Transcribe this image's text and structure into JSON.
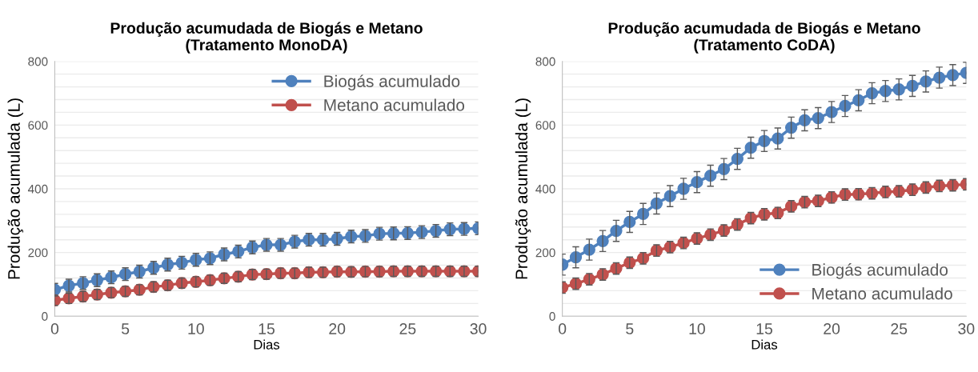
{
  "chart_data": [
    {
      "type": "line",
      "title": "Produção acumudada de Biogás e Metano\n(Tratamento MonoDA)",
      "xlabel": "Dias",
      "ylabel": "Produção acumulada (L)",
      "x": [
        0,
        1,
        2,
        3,
        4,
        5,
        6,
        7,
        8,
        9,
        10,
        11,
        12,
        13,
        14,
        15,
        16,
        17,
        18,
        19,
        20,
        21,
        22,
        23,
        24,
        25,
        26,
        27,
        28,
        29,
        30
      ],
      "series": [
        {
          "name": "Biogás acumulado",
          "color": "#4f81bd",
          "values": [
            83,
            96,
            104,
            113,
            122,
            132,
            140,
            152,
            162,
            168,
            177,
            182,
            194,
            203,
            216,
            224,
            224,
            234,
            240,
            240,
            243,
            250,
            252,
            259,
            260,
            261,
            264,
            268,
            273,
            274,
            276
          ],
          "errors": [
            20,
            20,
            20,
            20,
            20,
            20,
            20,
            20,
            20,
            20,
            20,
            20,
            20,
            20,
            20,
            20,
            20,
            20,
            20,
            20,
            20,
            20,
            20,
            20,
            20,
            20,
            20,
            20,
            20,
            20,
            20
          ]
        },
        {
          "name": "Metano acumulado",
          "color": "#c0504d",
          "values": [
            50,
            56,
            62,
            68,
            74,
            78,
            83,
            92,
            97,
            104,
            108,
            113,
            119,
            124,
            131,
            132,
            135,
            135,
            138,
            138,
            140,
            139,
            140,
            140,
            141,
            141,
            141,
            141,
            141,
            141,
            141
          ],
          "errors": [
            16,
            16,
            16,
            16,
            16,
            16,
            16,
            16,
            16,
            16,
            16,
            16,
            16,
            16,
            16,
            16,
            16,
            16,
            16,
            16,
            16,
            16,
            16,
            16,
            16,
            16,
            16,
            16,
            16,
            16,
            16
          ]
        }
      ],
      "xlim": [
        0,
        30
      ],
      "xticks": [
        0,
        5,
        10,
        15,
        20,
        25,
        30
      ],
      "ylim": [
        0,
        800
      ],
      "yticks": [
        0,
        {
          "value": 40,
          "label": null
        },
        {
          "value": 80,
          "label": null
        },
        {
          "value": 120,
          "label": null
        },
        {
          "value": 160,
          "label": null
        },
        200,
        {
          "value": 240,
          "label": null
        },
        {
          "value": 280,
          "label": null
        },
        {
          "value": 320,
          "label": null
        },
        {
          "value": 360,
          "label": null
        },
        400,
        {
          "value": 440,
          "label": null
        },
        {
          "value": 480,
          "label": null
        },
        {
          "value": 520,
          "label": null
        },
        {
          "value": 560,
          "label": null
        },
        600,
        {
          "value": 640,
          "label": null
        },
        {
          "value": 680,
          "label": null
        },
        {
          "value": 720,
          "label": null
        },
        {
          "value": 760,
          "label": null
        },
        800
      ],
      "grid": "y",
      "legend": "top right",
      "marker": "circle",
      "line_style": "solid"
    },
    {
      "type": "line",
      "title": "Produção acumudada de Biogás e Metano\n(Tratamento CoDA)",
      "xlabel": "Dias",
      "ylabel": "Produção acumulada (L)",
      "x": [
        0,
        1,
        2,
        3,
        4,
        5,
        6,
        7,
        8,
        9,
        10,
        11,
        12,
        13,
        14,
        15,
        16,
        17,
        18,
        19,
        20,
        21,
        22,
        23,
        24,
        25,
        26,
        27,
        28,
        29,
        30
      ],
      "series": [
        {
          "name": "Biogás acumulado",
          "color": "#4f81bd",
          "values": [
            162,
            185,
            209,
            236,
            268,
            296,
            321,
            354,
            377,
            400,
            421,
            441,
            462,
            494,
            529,
            550,
            558,
            592,
            615,
            622,
            641,
            660,
            678,
            700,
            707,
            712,
            723,
            737,
            749,
            757,
            764
          ],
          "errors": [
            33,
            33,
            33,
            33,
            33,
            33,
            33,
            33,
            33,
            33,
            33,
            33,
            33,
            33,
            33,
            33,
            33,
            33,
            33,
            33,
            33,
            33,
            33,
            33,
            33,
            33,
            33,
            33,
            33,
            33,
            33
          ]
        },
        {
          "name": "Metano acumulado",
          "color": "#c0504d",
          "values": [
            90,
            102,
            116,
            131,
            150,
            168,
            182,
            206,
            217,
            230,
            244,
            256,
            269,
            288,
            308,
            320,
            324,
            345,
            358,
            362,
            373,
            382,
            383,
            386,
            390,
            392,
            397,
            404,
            409,
            411,
            414
          ],
          "errors": [
            18,
            18,
            18,
            18,
            18,
            18,
            18,
            18,
            18,
            18,
            18,
            18,
            18,
            18,
            18,
            18,
            18,
            18,
            18,
            18,
            18,
            18,
            18,
            18,
            18,
            18,
            18,
            18,
            18,
            18,
            18
          ]
        }
      ],
      "xlim": [
        0,
        30
      ],
      "xticks": [
        0,
        5,
        10,
        15,
        20,
        25,
        30
      ],
      "ylim": [
        0,
        800
      ],
      "yticks": [
        0,
        {
          "value": 40,
          "label": null
        },
        {
          "value": 80,
          "label": null
        },
        {
          "value": 120,
          "label": null
        },
        {
          "value": 160,
          "label": null
        },
        200,
        {
          "value": 240,
          "label": null
        },
        {
          "value": 280,
          "label": null
        },
        {
          "value": 320,
          "label": null
        },
        {
          "value": 360,
          "label": null
        },
        400,
        {
          "value": 440,
          "label": null
        },
        {
          "value": 480,
          "label": null
        },
        {
          "value": 520,
          "label": null
        },
        {
          "value": 560,
          "label": null
        },
        600,
        {
          "value": 640,
          "label": null
        },
        {
          "value": 680,
          "label": null
        },
        {
          "value": 720,
          "label": null
        },
        {
          "value": 760,
          "label": null
        },
        800
      ],
      "grid": "y",
      "legend": "bottom right",
      "marker": "circle",
      "line_style": "solid"
    }
  ]
}
